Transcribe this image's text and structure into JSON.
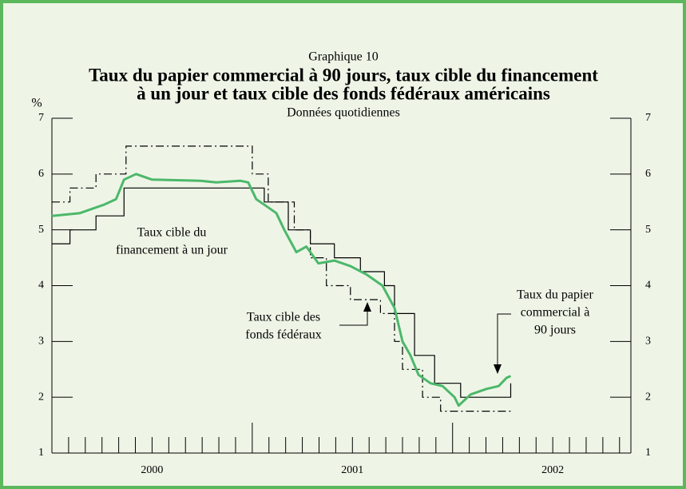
{
  "chart_data": {
    "type": "line",
    "header": "Graphique 10",
    "title": [
      "Taux du papier commercial à 90 jours, taux cible du financement",
      "à un jour et taux cible des fonds fédéraux américains"
    ],
    "subtitle": "Données quotidiennes",
    "ylabel": "%",
    "xlim": [
      2000,
      2002.89
    ],
    "xticks": [
      {
        "value": 2000.5,
        "label": "2000"
      },
      {
        "value": 2001.5,
        "label": "2001"
      },
      {
        "value": 2002.5,
        "label": "2002"
      }
    ],
    "ylim": [
      1,
      7
    ],
    "yticks": [
      1,
      2,
      3,
      4,
      5,
      6,
      7
    ],
    "series": [
      {
        "color": "#000000",
        "dash": "dashdot",
        "x": [
          2000,
          2000.09,
          2000.09,
          2000.22,
          2000.22,
          2000.37,
          2000.37,
          2001,
          2001,
          2001.08,
          2001.08,
          2001.21,
          2001.21,
          2001.29,
          2001.29,
          2001.37,
          2001.37,
          2001.49,
          2001.49,
          2001.64,
          2001.64,
          2001.71,
          2001.71,
          2001.75,
          2001.75,
          2001.85,
          2001.85,
          2001.94,
          2001.94,
          2002.29
        ],
        "values": [
          5.5,
          5.5,
          5.75,
          5.75,
          6,
          6,
          6.5,
          6.5,
          6,
          6,
          5.5,
          5.5,
          5,
          5,
          4.5,
          4.5,
          4,
          4,
          3.75,
          3.75,
          3.5,
          3.5,
          3,
          3,
          2.5,
          2.5,
          2,
          2,
          1.75,
          1.75
        ]
      },
      {
        "color": "#000000",
        "dash": "solid",
        "x": [
          2000,
          2000.09,
          2000.09,
          2000.22,
          2000.22,
          2000.36,
          2000.36,
          2001.06,
          2001.06,
          2001.18,
          2001.18,
          2001.29,
          2001.29,
          2001.41,
          2001.41,
          2001.54,
          2001.54,
          2001.66,
          2001.66,
          2001.71,
          2001.71,
          2001.81,
          2001.81,
          2001.91,
          2001.91,
          2002.04,
          2002.04,
          2002.29,
          2002.29
        ],
        "values": [
          4.75,
          4.75,
          5,
          5,
          5.25,
          5.25,
          5.75,
          5.75,
          5.5,
          5.5,
          5,
          5,
          4.75,
          4.75,
          4.5,
          4.5,
          4.25,
          4.25,
          4,
          4,
          3.5,
          3.5,
          2.75,
          2.75,
          2.25,
          2.25,
          2,
          2,
          2.25
        ]
      },
      {
        "color": "#4cb86a",
        "dash": "solid",
        "width": 3,
        "x": [
          2000,
          2000.14,
          2000.26,
          2000.32,
          2000.36,
          2000.42,
          2000.5,
          2000.74,
          2000.82,
          2000.94,
          2000.98,
          2001.02,
          2001.06,
          2001.12,
          2001.16,
          2001.22,
          2001.27,
          2001.33,
          2001.41,
          2001.49,
          2001.57,
          2001.65,
          2001.71,
          2001.75,
          2001.79,
          2001.83,
          2001.89,
          2001.95,
          2002.01,
          2002.03,
          2002.09,
          2002.17,
          2002.23,
          2002.27,
          2002.29
        ],
        "values": [
          5.25,
          5.3,
          5.45,
          5.55,
          5.9,
          6,
          5.9,
          5.88,
          5.85,
          5.88,
          5.85,
          5.55,
          5.45,
          5.3,
          5,
          4.6,
          4.7,
          4.4,
          4.45,
          4.35,
          4.2,
          4,
          3.6,
          3,
          2.75,
          2.4,
          2.25,
          2.2,
          2,
          1.85,
          2.05,
          2.15,
          2.2,
          2.35,
          2.38
        ]
      }
    ],
    "annotations": [
      {
        "lines": [
          "Taux cible du",
          "financement à un jour"
        ]
      },
      {
        "lines": [
          "Taux cible des",
          "fonds fédéraux"
        ]
      },
      {
        "lines": [
          "Taux du papier",
          "commercial à",
          "90 jours"
        ]
      }
    ]
  }
}
